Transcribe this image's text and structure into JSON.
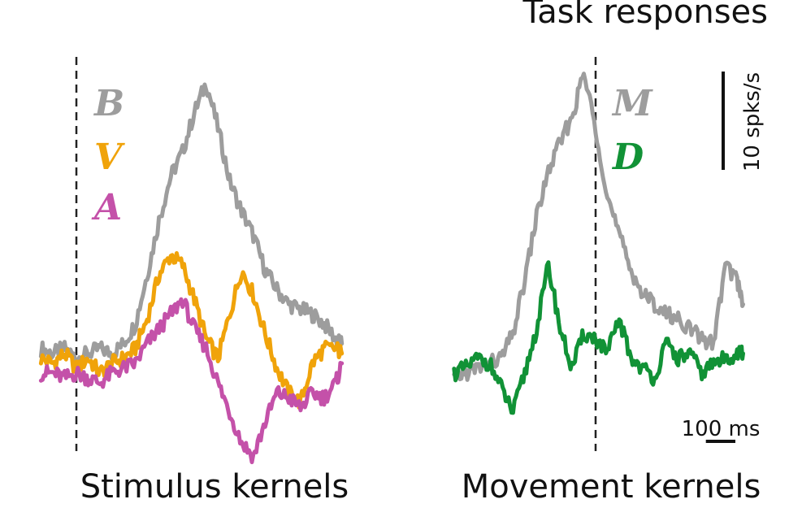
{
  "chart_data": {
    "type": "line",
    "title": "Task responses",
    "colors": {
      "B": "#9d9d9d",
      "V": "#f0a30a",
      "A": "#c451a9",
      "M": "#9d9d9d",
      "D": "#119236"
    },
    "scale_bars": {
      "y_label": "10 spks/s",
      "y_value": 10,
      "x_label": "100 ms",
      "x_value": 100
    },
    "panels": [
      {
        "label": "Stimulus kernels",
        "event_time_ms": 0,
        "xlim": [
          -120,
          900
        ],
        "ylim": [
          -12,
          35
        ],
        "series": [
          {
            "name": "B",
            "x": [
              -120,
              -80,
              -40,
              0,
              40,
              80,
              120,
              160,
              200,
              240,
              280,
              320,
              360,
              400,
              440,
              480,
              520,
              560,
              600,
              640,
              680,
              720,
              760,
              800,
              840,
              880,
              900
            ],
            "y": [
              1.5,
              1.0,
              1.5,
              0.5,
              1.0,
              1.5,
              1.0,
              2.0,
              4.0,
              9.0,
              14.5,
              19.0,
              21.5,
              25.5,
              28.5,
              24.0,
              18.5,
              15.5,
              13.0,
              9.5,
              7.5,
              6.0,
              5.5,
              5.0,
              4.0,
              2.5,
              2.0
            ]
          },
          {
            "name": "V",
            "x": [
              -120,
              -80,
              -40,
              0,
              40,
              80,
              120,
              160,
              200,
              240,
              280,
              320,
              360,
              400,
              440,
              480,
              520,
              560,
              600,
              640,
              680,
              720,
              760,
              800,
              840,
              880,
              900
            ],
            "y": [
              0.5,
              0.0,
              1.0,
              -0.5,
              0.5,
              -1.0,
              0.0,
              0.5,
              1.5,
              4.5,
              9.0,
              11.0,
              10.0,
              6.5,
              2.5,
              0.5,
              5.0,
              9.5,
              7.0,
              3.0,
              -0.5,
              -3.0,
              -4.0,
              0.0,
              1.5,
              1.5,
              1.0
            ]
          },
          {
            "name": "A",
            "x": [
              -120,
              -80,
              -40,
              0,
              40,
              80,
              120,
              160,
              200,
              240,
              280,
              320,
              360,
              400,
              440,
              480,
              520,
              560,
              600,
              640,
              680,
              720,
              760,
              800,
              840,
              880,
              900
            ],
            "y": [
              -1.0,
              -1.0,
              -1.5,
              -1.0,
              -1.5,
              -2.0,
              -1.0,
              -0.5,
              0.0,
              2.0,
              3.5,
              5.0,
              6.5,
              3.5,
              1.5,
              -2.0,
              -5.0,
              -8.0,
              -9.5,
              -6.0,
              -3.0,
              -3.5,
              -4.5,
              -3.0,
              -3.5,
              -2.0,
              0.0
            ]
          }
        ]
      },
      {
        "label": "Movement kernels",
        "event_time_ms": 0,
        "xlim": [
          -520,
          500
        ],
        "ylim": [
          -12,
          35
        ],
        "series": [
          {
            "name": "M",
            "x": [
              -480,
              -440,
              -400,
              -360,
              -320,
              -280,
              -240,
              -200,
              -160,
              -120,
              -80,
              -40,
              0,
              40,
              80,
              120,
              160,
              200,
              240,
              280,
              320,
              360,
              400,
              440,
              480,
              500
            ],
            "y": [
              -1.5,
              -1.0,
              -0.5,
              0.0,
              0.5,
              3.0,
              8.5,
              15.0,
              19.5,
              22.5,
              25.0,
              29.5,
              24.0,
              17.0,
              13.0,
              9.5,
              7.0,
              6.0,
              5.0,
              4.5,
              3.5,
              2.5,
              2.0,
              10.0,
              8.5,
              6.0
            ]
          },
          {
            "name": "D",
            "x": [
              -480,
              -440,
              -400,
              -360,
              -320,
              -280,
              -240,
              -200,
              -160,
              -120,
              -80,
              -40,
              0,
              40,
              80,
              120,
              160,
              200,
              240,
              280,
              320,
              360,
              400,
              440,
              480,
              500
            ],
            "y": [
              -1.0,
              -0.5,
              0.5,
              0.0,
              -2.5,
              -5.0,
              -1.0,
              3.5,
              10.0,
              3.5,
              -0.5,
              3.0,
              2.5,
              1.0,
              4.5,
              0.5,
              -0.5,
              -1.5,
              2.0,
              0.5,
              1.0,
              -1.0,
              0.0,
              0.5,
              1.0,
              1.0
            ]
          }
        ]
      }
    ]
  }
}
